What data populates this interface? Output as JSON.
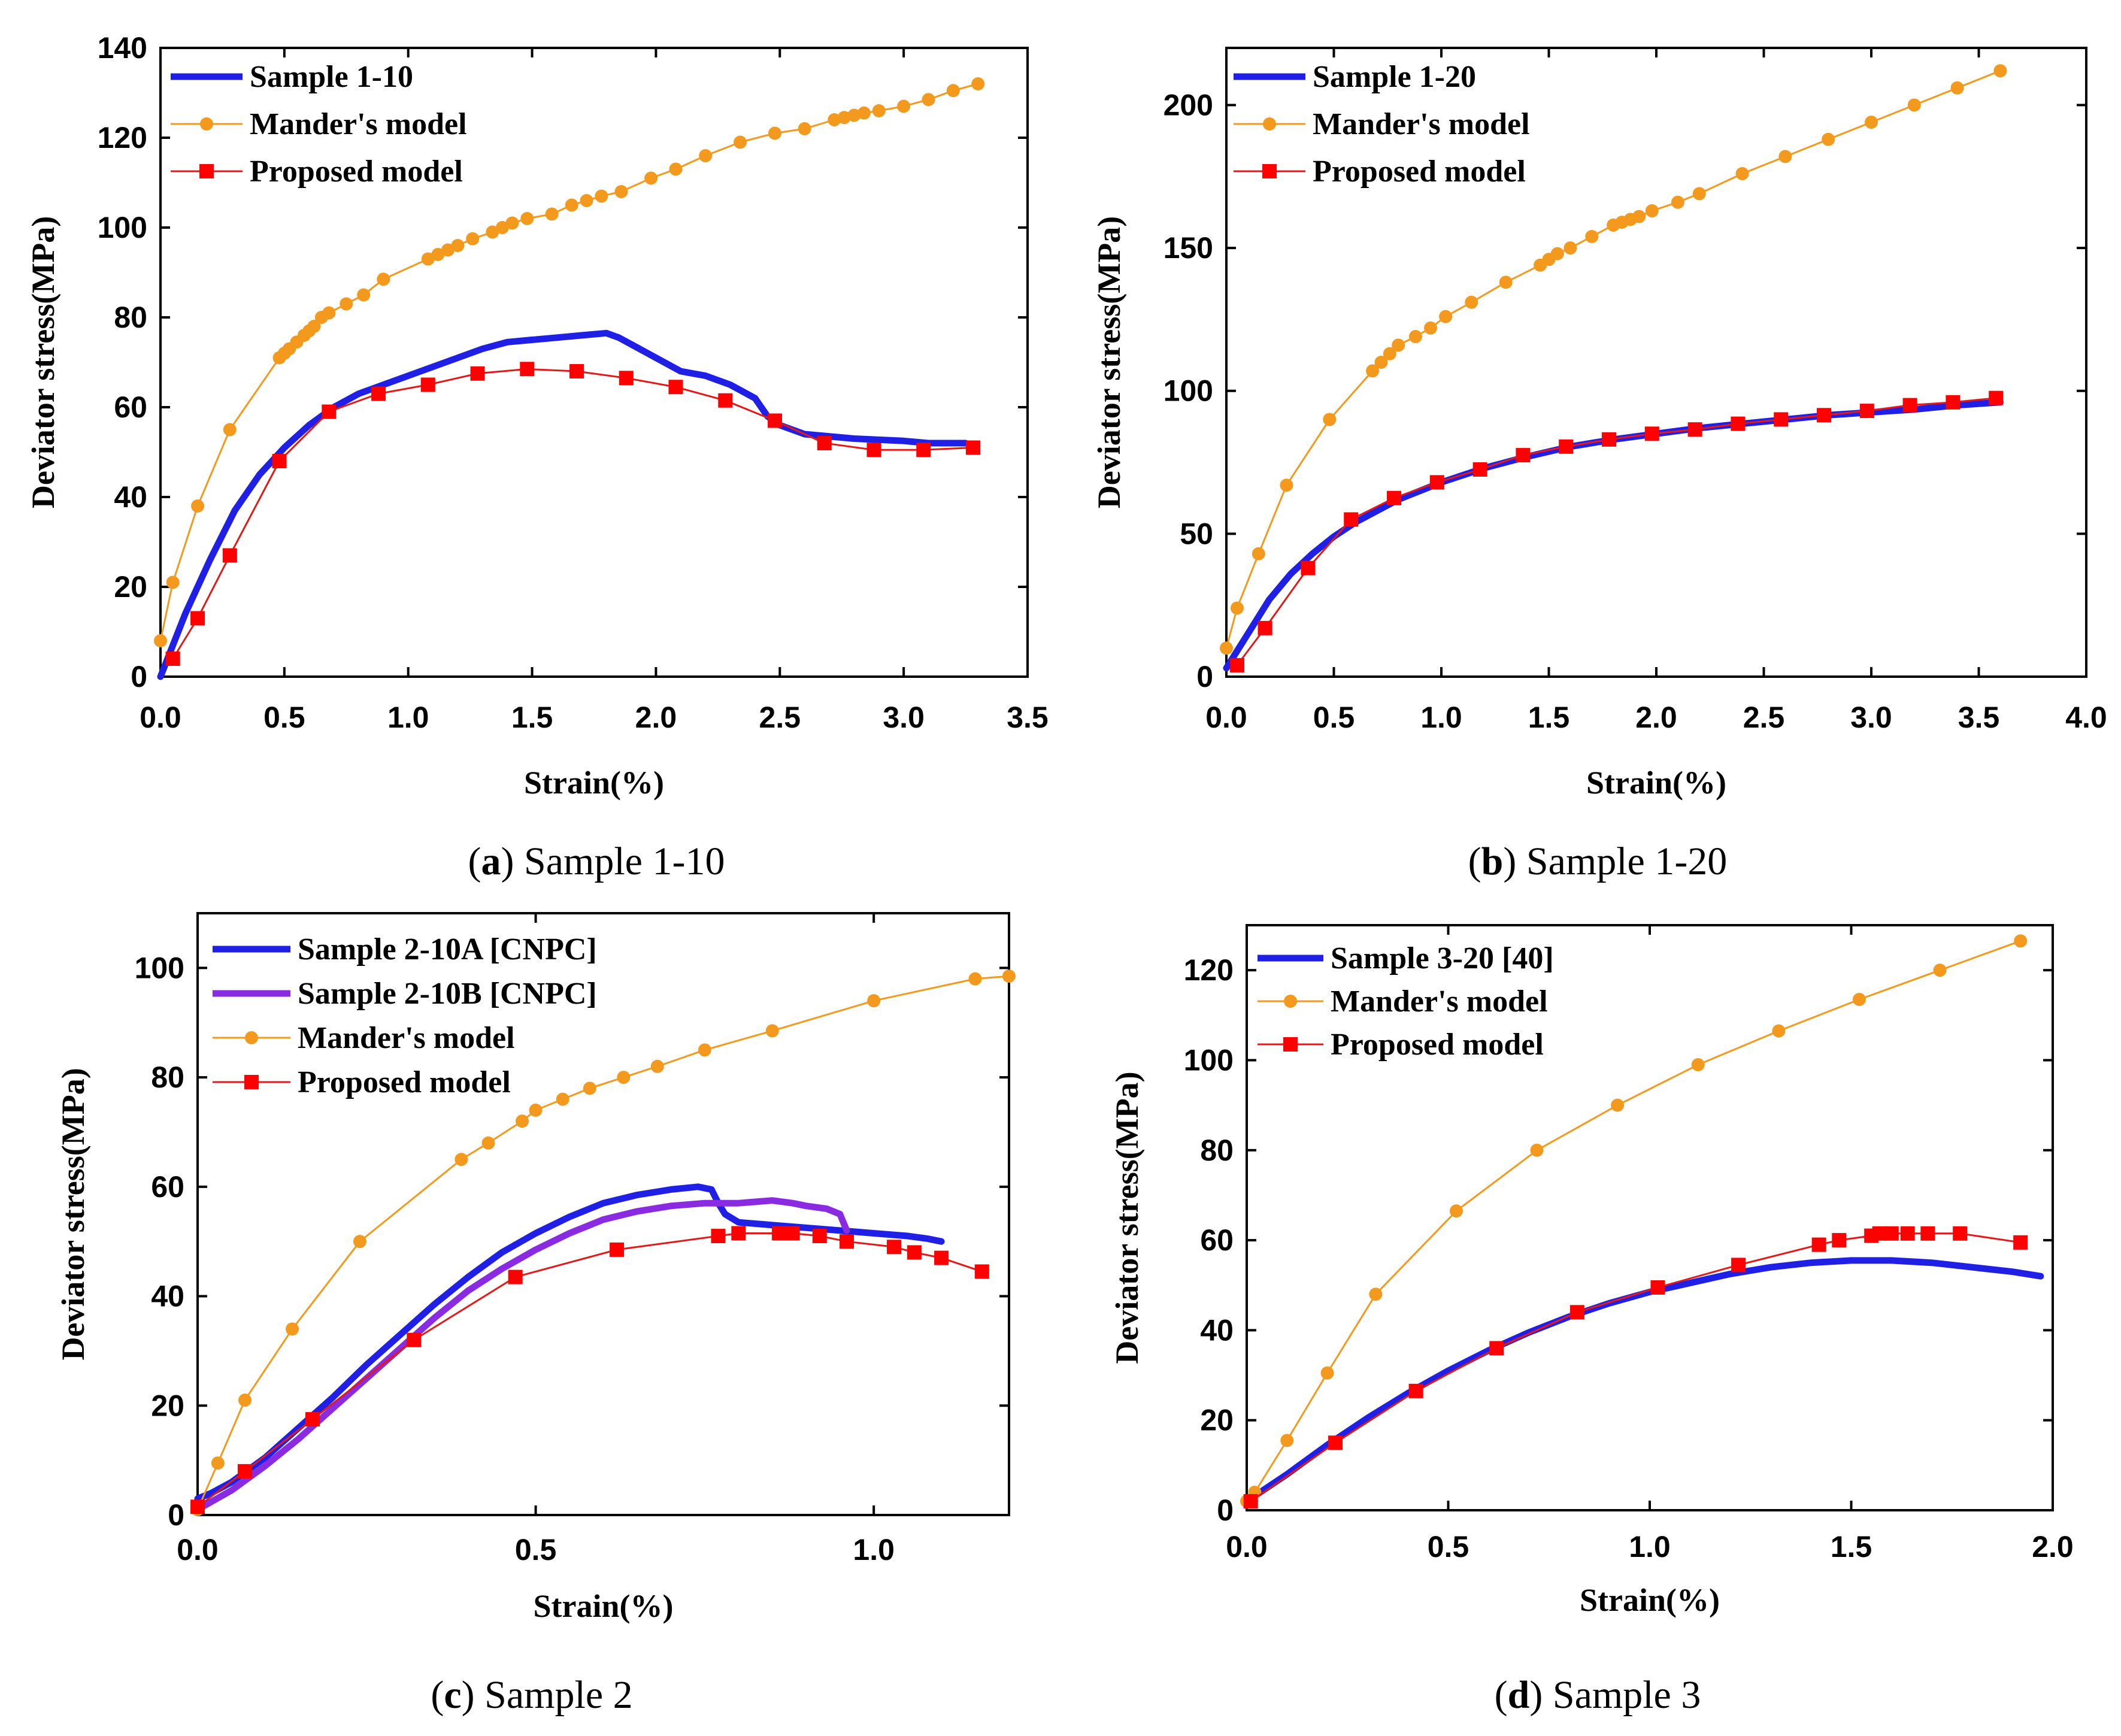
{
  "figure": {
    "panels": [
      {
        "id": "a",
        "caption_letter": "a",
        "caption_text": " Sample 1-10",
        "xlabel": "Strain(%)",
        "ylabel": "Deviator stress(MPa)",
        "xlim": [
          0,
          3.5
        ],
        "ylim": [
          0,
          140
        ],
        "xticks": [
          "0.0",
          "0.5",
          "1.0",
          "1.5",
          "2.0",
          "2.5",
          "3.0",
          "3.5"
        ],
        "yticks": [
          "0",
          "20",
          "40",
          "60",
          "80",
          "100",
          "120",
          "140"
        ],
        "legend": [
          "Sample 1-10",
          "Mander's model",
          "Proposed model"
        ]
      },
      {
        "id": "b",
        "caption_letter": "b",
        "caption_text": " Sample 1-20",
        "xlabel": "Strain(%)",
        "ylabel": "Deviator stress(MPa)",
        "xlim": [
          0,
          4.0
        ],
        "ylim": [
          0,
          220
        ],
        "xticks": [
          "0.0",
          "0.5",
          "1.0",
          "1.5",
          "2.0",
          "2.5",
          "3.0",
          "3.5",
          "4.0"
        ],
        "yticks": [
          "0",
          "50",
          "100",
          "150",
          "200"
        ],
        "legend": [
          "Sample 1-20",
          "Mander's model",
          "Proposed model"
        ]
      },
      {
        "id": "c",
        "caption_letter": "c",
        "caption_text": " Sample 2",
        "xlabel": "Strain(%)",
        "ylabel": "Deviator stress(MPa)",
        "xlim": [
          0,
          1.2
        ],
        "ylim": [
          0,
          110
        ],
        "xticks": [
          "0.0",
          "0.5",
          "1.0"
        ],
        "yticks": [
          "0",
          "20",
          "40",
          "60",
          "80",
          "100"
        ],
        "legend": [
          "Sample 2-10A [CNPC]",
          "Sample 2-10B [CNPC]",
          "Mander's model",
          "Proposed model"
        ]
      },
      {
        "id": "d",
        "caption_letter": "d",
        "caption_text": " Sample 3",
        "xlabel": "Strain(%)",
        "ylabel": "Deviator stress(MPa)",
        "xlim": [
          0,
          2.0
        ],
        "ylim": [
          0,
          130
        ],
        "xticks": [
          "0.0",
          "0.5",
          "1.0",
          "1.5",
          "2.0"
        ],
        "yticks": [
          "0",
          "20",
          "40",
          "60",
          "80",
          "100",
          "120"
        ],
        "legend": [
          "Sample 3-20 [40]",
          "Mander's model",
          "Proposed model"
        ]
      }
    ]
  },
  "colors": {
    "experiment_a": "#1f1fe6",
    "experiment_b": "#8a2be2",
    "mander": "#f39a1e",
    "proposed": "#e11919",
    "proposed_marker": "#ff0000"
  },
  "chart_data": [
    {
      "type": "line",
      "title": "Sample 1-10",
      "xlabel": "Strain(%)",
      "ylabel": "Deviator stress(MPa)",
      "xlim": [
        0,
        3.5
      ],
      "ylim": [
        0,
        140
      ],
      "series": [
        {
          "name": "Sample 1-10",
          "style": "experiment_a",
          "x": [
            0,
            0.1,
            0.2,
            0.3,
            0.4,
            0.5,
            0.6,
            0.7,
            0.8,
            0.9,
            1.0,
            1.1,
            1.2,
            1.3,
            1.4,
            1.5,
            1.6,
            1.7,
            1.8,
            1.85,
            1.9,
            2.0,
            2.1,
            2.2,
            2.3,
            2.4,
            2.45,
            2.5,
            2.6,
            2.8,
            3.0,
            3.1,
            3.25
          ],
          "y": [
            0,
            14,
            26,
            37,
            45,
            51,
            56,
            60,
            63,
            65,
            67,
            69,
            71,
            73,
            74.5,
            75,
            75.5,
            76,
            76.5,
            75.5,
            74,
            71,
            68,
            67,
            65,
            62,
            58,
            56,
            54,
            53,
            52.5,
            52,
            52
          ]
        },
        {
          "name": "Mander's model",
          "style": "mander",
          "x": [
            0,
            0.05,
            0.15,
            0.28,
            0.48,
            0.5,
            0.52,
            0.55,
            0.58,
            0.6,
            0.62,
            0.65,
            0.68,
            0.75,
            0.82,
            0.9,
            1.08,
            1.12,
            1.16,
            1.2,
            1.26,
            1.34,
            1.38,
            1.42,
            1.48,
            1.58,
            1.66,
            1.72,
            1.78,
            1.86,
            1.98,
            2.08,
            2.2,
            2.34,
            2.48,
            2.6,
            2.72,
            2.76,
            2.8,
            2.84,
            2.9,
            3.0,
            3.1,
            3.2,
            3.3
          ],
          "y": [
            8,
            21,
            38,
            55,
            71,
            72,
            73,
            74.5,
            76,
            77,
            78,
            80,
            81,
            83,
            85,
            88.5,
            93,
            94,
            95,
            96,
            97.5,
            99,
            100,
            101,
            102,
            103,
            105,
            106,
            107,
            108,
            111,
            113,
            116,
            119,
            121,
            122,
            124,
            124.5,
            125,
            125.5,
            126,
            127,
            128.5,
            130.5,
            132
          ]
        },
        {
          "name": "Proposed model",
          "style": "proposed",
          "x": [
            0.05,
            0.15,
            0.28,
            0.48,
            0.68,
            0.88,
            1.08,
            1.28,
            1.48,
            1.68,
            1.88,
            2.08,
            2.28,
            2.48,
            2.68,
            2.88,
            3.08,
            3.28
          ],
          "y": [
            4,
            13,
            27,
            48,
            59,
            63,
            65,
            67.5,
            68.5,
            68,
            66.5,
            64.5,
            61.5,
            57,
            52,
            50.5,
            50.5,
            51
          ]
        }
      ]
    },
    {
      "type": "line",
      "title": "Sample 1-20",
      "xlabel": "Strain(%)",
      "ylabel": "Deviator stress(MPa)",
      "xlim": [
        0,
        4.0
      ],
      "ylim": [
        0,
        220
      ],
      "series": [
        {
          "name": "Sample 1-20",
          "style": "experiment_a",
          "x": [
            0,
            0.1,
            0.2,
            0.3,
            0.4,
            0.5,
            0.6,
            0.8,
            1.0,
            1.2,
            1.4,
            1.6,
            1.8,
            2.0,
            2.2,
            2.4,
            2.6,
            2.8,
            3.0,
            3.2,
            3.4,
            3.6
          ],
          "y": [
            3,
            15,
            27,
            36,
            43,
            49,
            54,
            62,
            68,
            73,
            77,
            80.5,
            83,
            85,
            87,
            88.5,
            90,
            91.5,
            92.5,
            93.5,
            95,
            96
          ]
        },
        {
          "name": "Mander's model",
          "style": "mander",
          "x": [
            0,
            0.05,
            0.15,
            0.28,
            0.48,
            0.68,
            0.72,
            0.76,
            0.8,
            0.88,
            0.95,
            1.02,
            1.14,
            1.3,
            1.46,
            1.5,
            1.54,
            1.6,
            1.7,
            1.8,
            1.84,
            1.88,
            1.92,
            1.98,
            2.1,
            2.2,
            2.4,
            2.6,
            2.8,
            3.0,
            3.2,
            3.4,
            3.6
          ],
          "y": [
            10,
            24,
            43,
            67,
            90,
            107,
            110,
            113,
            116,
            119,
            122,
            126,
            131,
            138,
            144,
            146,
            148,
            150,
            154,
            158,
            159,
            160,
            161,
            163,
            166,
            169,
            176,
            182,
            188,
            194,
            200,
            206,
            212
          ]
        },
        {
          "name": "Proposed model",
          "style": "proposed",
          "x": [
            0.05,
            0.18,
            0.38,
            0.58,
            0.78,
            0.98,
            1.18,
            1.38,
            1.58,
            1.78,
            1.98,
            2.18,
            2.38,
            2.58,
            2.78,
            2.98,
            3.18,
            3.38,
            3.58
          ],
          "y": [
            4,
            17,
            38,
            55,
            62.5,
            68,
            72.5,
            77.5,
            80.5,
            83,
            85,
            86.5,
            88.5,
            90,
            91.5,
            93,
            95,
            96,
            97.5
          ]
        }
      ]
    },
    {
      "type": "line",
      "title": "Sample 2",
      "xlabel": "Strain(%)",
      "ylabel": "Deviator stress(MPa)",
      "xlim": [
        0,
        1.2
      ],
      "ylim": [
        0,
        110
      ],
      "series": [
        {
          "name": "Sample 2-10A [CNPC]",
          "style": "experiment_a",
          "x": [
            0,
            0.02,
            0.05,
            0.1,
            0.15,
            0.2,
            0.25,
            0.3,
            0.35,
            0.4,
            0.45,
            0.5,
            0.55,
            0.6,
            0.65,
            0.7,
            0.74,
            0.76,
            0.77,
            0.78,
            0.8,
            0.85,
            0.9,
            0.95,
            1.0,
            1.05,
            1.08,
            1.1
          ],
          "y": [
            3,
            4,
            6,
            10.5,
            16,
            21.5,
            27.5,
            33,
            38.5,
            43.5,
            48,
            51.5,
            54.5,
            57,
            58.5,
            59.5,
            60,
            59.5,
            57,
            55,
            53.5,
            53,
            52.5,
            52,
            51.5,
            51,
            50.5,
            50
          ]
        },
        {
          "name": "Sample 2-10B [CNPC]",
          "style": "experiment_b",
          "x": [
            0,
            0.05,
            0.1,
            0.15,
            0.2,
            0.25,
            0.3,
            0.35,
            0.4,
            0.45,
            0.5,
            0.55,
            0.6,
            0.65,
            0.7,
            0.75,
            0.8,
            0.85,
            0.88,
            0.9,
            0.93,
            0.95,
            0.96
          ],
          "y": [
            1,
            4.5,
            9,
            14,
            19.5,
            25,
            30.5,
            36,
            41,
            45,
            48.5,
            51.5,
            54,
            55.5,
            56.5,
            57,
            57,
            57.5,
            57,
            56.5,
            56,
            55,
            52
          ]
        },
        {
          "name": "Mander's model",
          "style": "mander",
          "x": [
            0,
            0.03,
            0.07,
            0.14,
            0.24,
            0.39,
            0.43,
            0.48,
            0.5,
            0.54,
            0.58,
            0.63,
            0.68,
            0.75,
            0.85,
            1.0,
            1.15,
            1.2
          ],
          "y": [
            1,
            9.5,
            21,
            34,
            50,
            65,
            68,
            72,
            74,
            76,
            78,
            80,
            82,
            85,
            88.5,
            94,
            98,
            98.5
          ]
        },
        {
          "name": "Proposed model",
          "style": "proposed",
          "x": [
            0.0,
            0.07,
            0.17,
            0.32,
            0.47,
            0.62,
            0.77,
            0.8,
            0.86,
            0.88,
            0.92,
            0.96,
            1.03,
            1.06,
            1.1,
            1.16
          ],
          "y": [
            1.5,
            8,
            17.5,
            32,
            43.5,
            48.5,
            51,
            51.5,
            51.5,
            51.5,
            51,
            50,
            49,
            48,
            47,
            44.5
          ]
        }
      ]
    },
    {
      "type": "line",
      "title": "Sample 3",
      "xlabel": "Strain(%)",
      "ylabel": "Deviator stress(MPa)",
      "xlim": [
        0,
        2.0
      ],
      "ylim": [
        0,
        130
      ],
      "series": [
        {
          "name": "Sample 3-20 [40]",
          "style": "experiment_a",
          "x": [
            0,
            0.1,
            0.2,
            0.3,
            0.4,
            0.5,
            0.6,
            0.7,
            0.8,
            0.9,
            1.0,
            1.1,
            1.2,
            1.3,
            1.4,
            1.5,
            1.6,
            1.7,
            1.8,
            1.9,
            1.97
          ],
          "y": [
            2,
            8,
            14.5,
            20.5,
            26,
            31,
            35.5,
            39.5,
            43,
            46,
            48.5,
            50.5,
            52.5,
            54,
            55,
            55.5,
            55.5,
            55,
            54,
            53,
            52
          ]
        },
        {
          "name": "Mander's model",
          "style": "mander",
          "x": [
            0.0,
            0.02,
            0.1,
            0.2,
            0.32,
            0.52,
            0.72,
            0.92,
            1.12,
            1.32,
            1.52,
            1.72,
            1.92
          ],
          "y": [
            2,
            4,
            15.5,
            30.5,
            48,
            66.5,
            80,
            90,
            99,
            106.5,
            113.5,
            120,
            126.5
          ]
        },
        {
          "name": "Proposed model",
          "style": "proposed",
          "x": [
            0.01,
            0.22,
            0.42,
            0.62,
            0.82,
            1.02,
            1.22,
            1.42,
            1.47,
            1.55,
            1.57,
            1.6,
            1.64,
            1.69,
            1.77,
            1.92
          ],
          "y": [
            2,
            15,
            26.5,
            36,
            44,
            49.5,
            54.5,
            59,
            60,
            61,
            61.5,
            61.5,
            61.5,
            61.5,
            61.5,
            59.5
          ]
        }
      ]
    }
  ]
}
